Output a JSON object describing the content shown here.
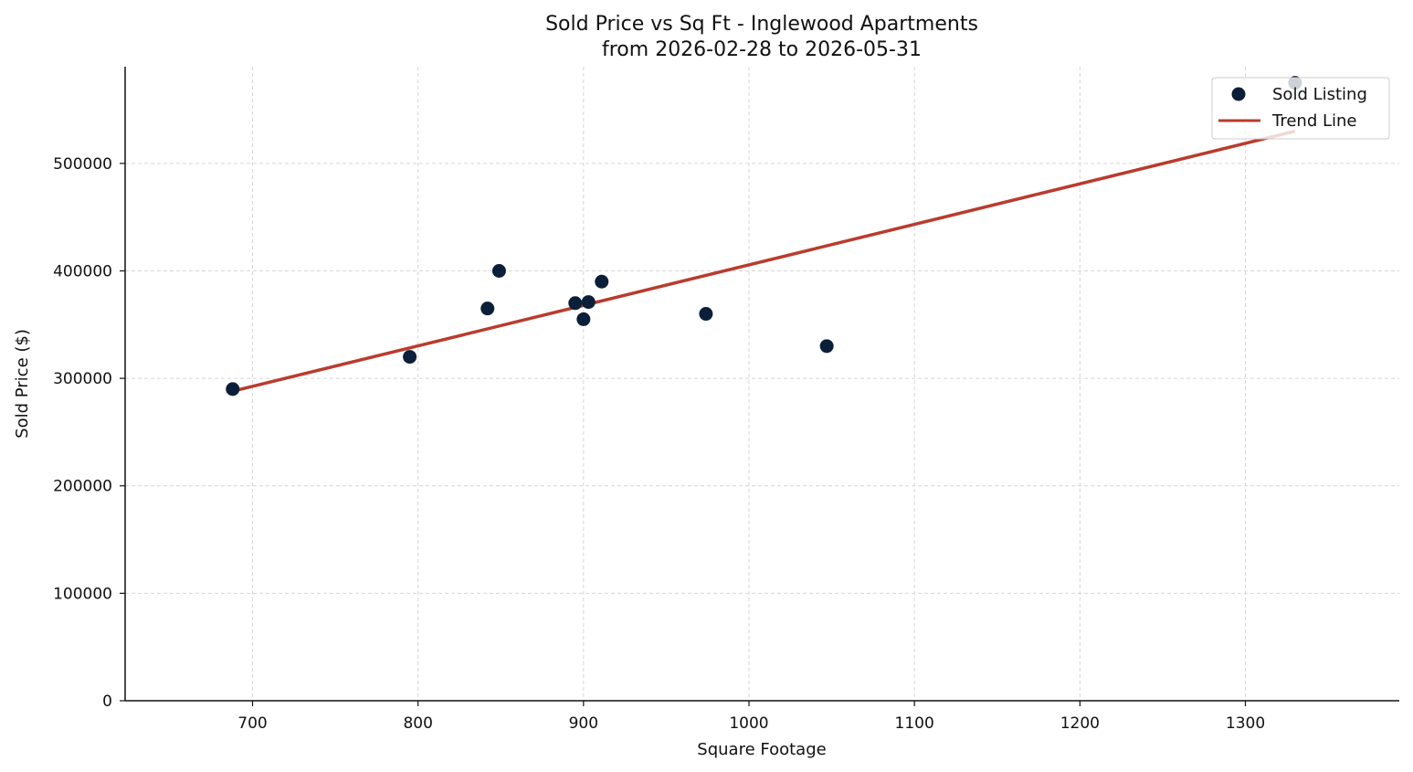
{
  "chart_data": {
    "type": "scatter",
    "title": "Sold Price vs Sq Ft - Inglewood Apartments",
    "subtitle": "from 2026-02-28 to 2026-05-31",
    "xlabel": "Square Footage",
    "ylabel": "Sold Price ($)",
    "xlim": [
      623,
      1393
    ],
    "ylim": [
      0,
      590000
    ],
    "xticks": [
      700,
      800,
      900,
      1000,
      1100,
      1200,
      1300
    ],
    "yticks": [
      0,
      100000,
      200000,
      300000,
      400000,
      500000
    ],
    "grid": true,
    "legend_position": "top-right",
    "series": [
      {
        "name": "Sold Listing",
        "kind": "scatter",
        "color": "#0b1f3a",
        "points": [
          {
            "x": 688,
            "y": 290000
          },
          {
            "x": 795,
            "y": 320000
          },
          {
            "x": 842,
            "y": 365000
          },
          {
            "x": 849,
            "y": 400000
          },
          {
            "x": 895,
            "y": 370000
          },
          {
            "x": 900,
            "y": 355000
          },
          {
            "x": 903,
            "y": 371000
          },
          {
            "x": 911,
            "y": 390000
          },
          {
            "x": 974,
            "y": 360000
          },
          {
            "x": 1047,
            "y": 330000
          },
          {
            "x": 1330,
            "y": 575000
          }
        ]
      },
      {
        "name": "Trend Line",
        "kind": "line",
        "color": "#b83c2e",
        "points": [
          {
            "x": 688,
            "y": 288000
          },
          {
            "x": 1330,
            "y": 530000
          }
        ]
      }
    ]
  }
}
